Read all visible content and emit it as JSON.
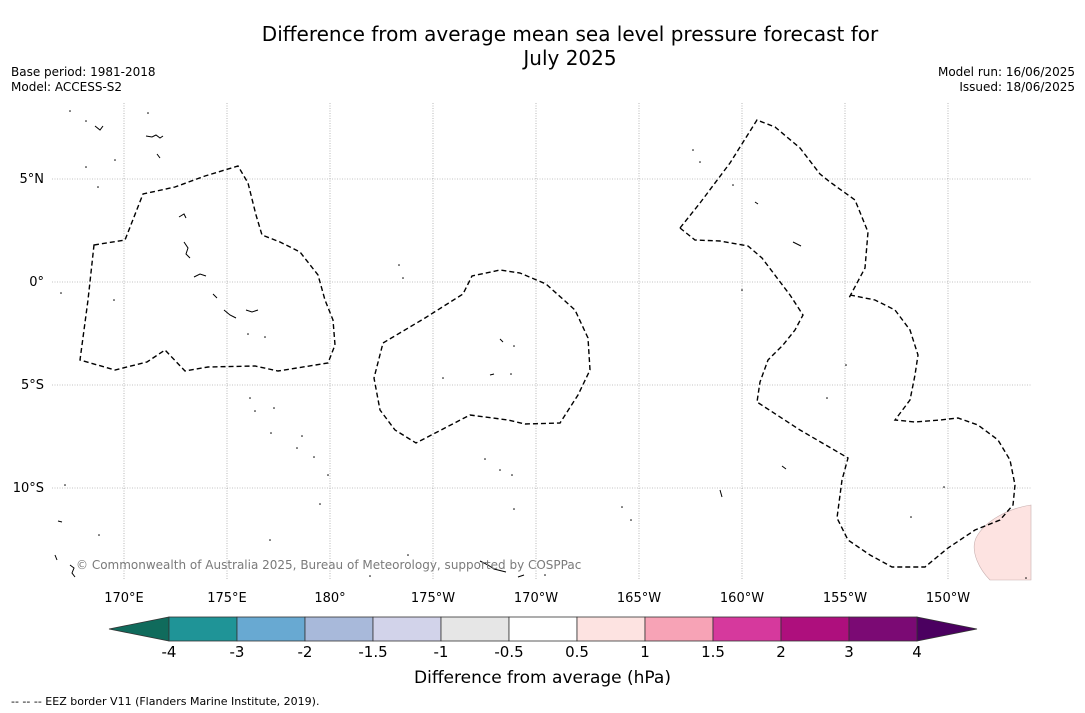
{
  "title_line1": "Difference from average mean sea level pressure forecast for",
  "title_line2": "July 2025",
  "base_period": "Base period: 1981-2018",
  "model": "Model: ACCESS-S2",
  "model_run": "Model run: 16/06/2025",
  "issued": "Issued: 18/06/2025",
  "copyright": "© Commonwealth of Australia 2025, Bureau of Meteorology, supported by COSPPac",
  "lat_labels": [
    "5°N",
    "0°",
    "5°S",
    "10°S"
  ],
  "lon_labels": [
    "170°E",
    "175°E",
    "180°",
    "175°W",
    "170°W",
    "165°W",
    "160°W",
    "155°W",
    "150°W"
  ],
  "colorbar": {
    "ticks": [
      "-4",
      "-3",
      "-2",
      "-1.5",
      "-1",
      "-0.5",
      "0.5",
      "1",
      "1.5",
      "2",
      "3",
      "4"
    ],
    "colors": [
      "#1f9497",
      "#68a9d2",
      "#a8b9da",
      "#d2d3ea",
      "#e6e6e6",
      "#ffffff",
      "#fde3e1",
      "#f7a3b6",
      "#d6399d",
      "#ae0f7d",
      "#7b0a74"
    ],
    "under_color": "#106b5c",
    "over_color": "#4b0060",
    "label": "Difference from average (hPa)"
  },
  "footnote": "--  --  -- EEZ border V11 (Flanders Marine Institute, 2019)."
}
